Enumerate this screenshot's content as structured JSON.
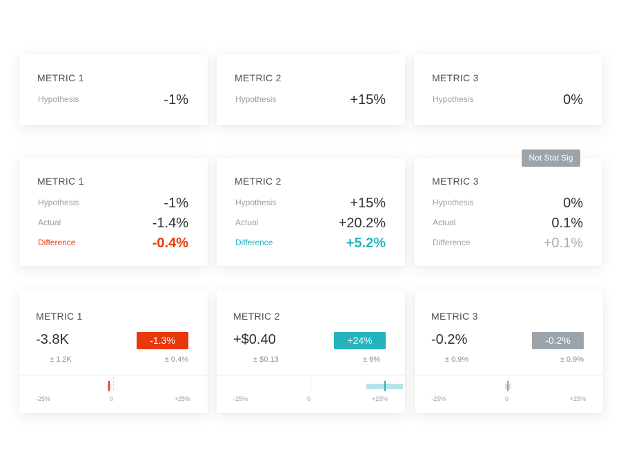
{
  "colors": {
    "negative": "#e8380d",
    "positive": "#25b4bd",
    "neutral": "#9ba3ab"
  },
  "hypothesis_cards": [
    {
      "title": "METRIC 1",
      "hypothesis_label": "Hypothesis",
      "hypothesis_value": "-1%"
    },
    {
      "title": "METRIC 2",
      "hypothesis_label": "Hypothesis",
      "hypothesis_value": "+15%"
    },
    {
      "title": "METRIC 3",
      "hypothesis_label": "Hypothesis",
      "hypothesis_value": "0%"
    }
  ],
  "result_cards": [
    {
      "title": "METRIC 1",
      "hypothesis_label": "Hypothesis",
      "hypothesis_value": "-1%",
      "actual_label": "Actual",
      "actual_value": "-1.4%",
      "difference_label": "Difference",
      "difference_value": "-0.4%",
      "tone": "negative"
    },
    {
      "title": "METRIC 2",
      "hypothesis_label": "Hypothesis",
      "hypothesis_value": "+15%",
      "actual_label": "Actual",
      "actual_value": "+20.2%",
      "difference_label": "Difference",
      "difference_value": "+5.2%",
      "tone": "positive"
    },
    {
      "title": "METRIC 3",
      "hypothesis_label": "Hypothesis",
      "hypothesis_value": "0%",
      "actual_label": "Actual",
      "actual_value": "0.1%",
      "difference_label": "Difference",
      "difference_value": "+0.1%",
      "tone": "neutral",
      "badge": "Not Stat Sig"
    }
  ],
  "impact_cards": [
    {
      "title": "METRIC 1",
      "value": "-3.8K",
      "value_error": "± 1.2K",
      "change": "-1.3%",
      "change_error": "± 0.4%",
      "tone": "negative",
      "axis": {
        "min_label": "-25%",
        "zero_label": "0",
        "max_label": "+25%"
      },
      "interval": {
        "low": -1.7,
        "point": -1.3,
        "high": -0.9
      }
    },
    {
      "title": "METRIC 2",
      "value": "+$0.40",
      "value_error": "± $0.13",
      "change": "+24%",
      "change_error": "± 6%",
      "tone": "positive",
      "axis": {
        "min_label": "-25%",
        "zero_label": "0",
        "max_label": "+25%"
      },
      "interval": {
        "low": 18,
        "point": 24,
        "high": 30
      }
    },
    {
      "title": "METRIC 3",
      "value": "-0.2%",
      "value_error": "± 0.9%",
      "change": "-0.2%",
      "change_error": "± 0.9%",
      "tone": "neutral",
      "axis": {
        "min_label": "-25%",
        "zero_label": "0",
        "max_label": "+25%"
      },
      "interval": {
        "low": -1.1,
        "point": -0.2,
        "high": 0.7
      }
    }
  ]
}
